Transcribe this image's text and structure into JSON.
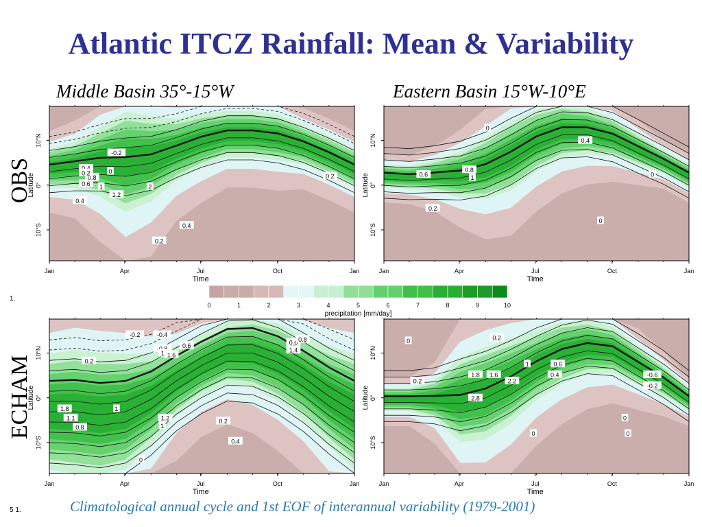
{
  "title": "Atlantic ITCZ Rainfall: Mean & Variability",
  "subtitle_left": "Middle Basin 35°-15°W",
  "subtitle_right": "Eastern Basin 15°W-10°E",
  "row_label_top": "OBS",
  "row_label_bottom": "ECHAM",
  "caption": "Climatological annual cycle and 1st EOF of interannual variability (1979-2001)",
  "stray_top": "1.",
  "stray_bottom": "5 1.",
  "colors": {
    "title": "#2e3092",
    "caption": "#2a7ab0",
    "dry": "#c9aeac",
    "dry_light": "#ddc4c2",
    "moist": "#dff5f5"
  },
  "colorbar": {
    "ticks": [
      "0",
      "1",
      "2",
      "3",
      "4",
      "5",
      "6",
      "7",
      "8",
      "9",
      "10"
    ],
    "label": "precipitation [mm/day]",
    "colors": [
      "#c4a4a2",
      "#c9acaa",
      "#d6b9b7",
      "#e3f7f7",
      "#c7f0d0",
      "#8fdf97",
      "#63d06d",
      "#3fc049",
      "#2aaf35",
      "#1e9a28",
      "#0e8a1a"
    ]
  },
  "chart_data": [
    {
      "type": "heatmap",
      "panel": "OBS Middle Basin",
      "xlabel": "Time",
      "ylabel": "Latitude",
      "x_ticks": [
        "Jan",
        "Apr",
        "Jul",
        "Oct",
        "Jan"
      ],
      "y_ticks": [
        "10°N",
        "0°",
        "10°S"
      ],
      "contour_labels": [
        "-0.2",
        "0",
        "0.2",
        "0.4",
        "0.6",
        "0.8",
        "1",
        "1.2",
        "2",
        "0.4",
        "0.2",
        "0.2",
        "0.4"
      ]
    },
    {
      "type": "heatmap",
      "panel": "OBS Eastern Basin",
      "xlabel": "Time",
      "ylabel": "Latitude",
      "x_ticks": [
        "Jan",
        "Apr",
        "Jul",
        "Oct",
        "Jan"
      ],
      "y_ticks": [
        "10°N",
        "0°",
        "10°S"
      ],
      "contour_labels": [
        "0",
        "0.4",
        "0.6",
        "0.8",
        "1",
        "0.2",
        "0",
        "0"
      ]
    },
    {
      "type": "heatmap",
      "panel": "ECHAM Middle Basin",
      "xlabel": "Time",
      "ylabel": "Latitude",
      "x_ticks": [
        "Jan",
        "Apr",
        "Jul",
        "Oct",
        "Jan"
      ],
      "y_ticks": [
        "10°N",
        "0°",
        "10°S"
      ],
      "contour_labels": [
        "-0.2",
        "-0.4",
        "0.2",
        "-0.8",
        "1.2",
        "0.6",
        "1.6",
        "1",
        "1.8",
        "1.1",
        "0.8",
        "1.2",
        "1",
        "0.2",
        "0.4",
        "0",
        "0.6",
        "1.4",
        "0.8"
      ]
    },
    {
      "type": "heatmap",
      "panel": "ECHAM Eastern Basin",
      "xlabel": "Time",
      "ylabel": "Latitude",
      "x_ticks": [
        "Jan",
        "Apr",
        "Jul",
        "Oct",
        "Jan"
      ],
      "y_ticks": [
        "10°N",
        "0°",
        "10°S"
      ],
      "contour_labels": [
        "0",
        "0.2",
        "0.2",
        "1.8",
        "1.6",
        "2.2",
        "2.8",
        "1",
        "0.6",
        "0.4",
        "-0.6",
        "-0.2",
        "0",
        "0",
        "0"
      ]
    }
  ]
}
